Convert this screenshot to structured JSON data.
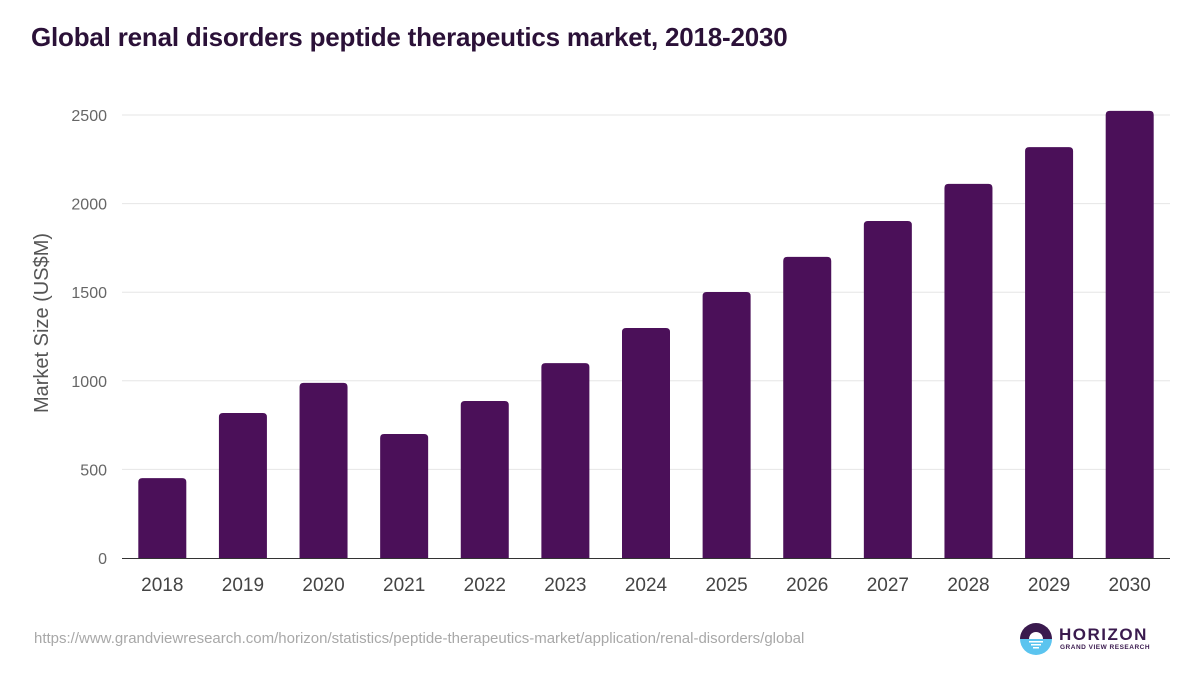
{
  "title": "Global renal disorders peptide therapeutics market, 2018-2030",
  "source_url": "https://www.grandviewresearch.com/horizon/statistics/peptide-therapeutics-market/application/renal-disorders/global",
  "logo": {
    "name": "HORIZON",
    "subtitle": "GRAND VIEW RESEARCH"
  },
  "colors": {
    "bar": "#4b1059",
    "title": "#2b1138",
    "grid": "#e6e6e6",
    "axis": "#333333"
  },
  "chart_data": {
    "type": "bar",
    "title": "Global renal disorders peptide therapeutics market, 2018-2030",
    "xlabel": "",
    "ylabel": "Market Size (US$M)",
    "categories": [
      "2018",
      "2019",
      "2020",
      "2021",
      "2022",
      "2023",
      "2024",
      "2025",
      "2026",
      "2027",
      "2028",
      "2029",
      "2030"
    ],
    "values": [
      451,
      818,
      988,
      700,
      886,
      1100,
      1298,
      1501,
      1699,
      1902,
      2111,
      2319,
      2523
    ],
    "ylim": [
      0,
      2500
    ],
    "yticks": [
      0,
      500,
      1000,
      1500,
      2000,
      2500
    ],
    "grid": true,
    "legend": "none"
  }
}
